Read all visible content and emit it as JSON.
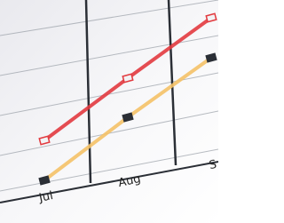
{
  "chart_data": {
    "type": "line",
    "categories": [
      "Jul",
      "Aug",
      "S"
    ],
    "series": [
      {
        "color": "#e23a3f",
        "values": [
          3.6,
          7.1,
          10.5
        ]
      },
      {
        "color": "#f4c167",
        "values": [
          1.35,
          4.9,
          8.25
        ]
      }
    ],
    "ylim": [
      0,
      11.5
    ]
  }
}
